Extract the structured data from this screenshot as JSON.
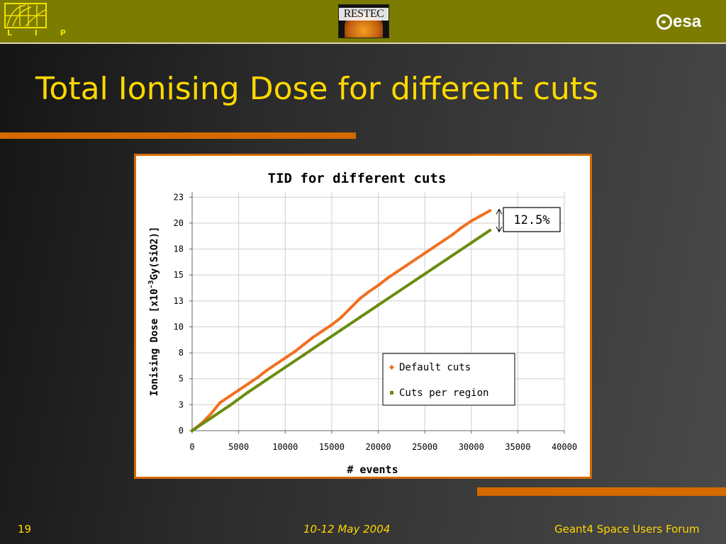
{
  "header": {
    "lip_letters": "L I P",
    "restec_text": "RESTEC",
    "esa_text": "esa"
  },
  "slide": {
    "title": "Total Ionising Dose for different cuts"
  },
  "footer": {
    "page": "19",
    "date": "10-12 May 2004",
    "event": "Geant4 Space Users Forum"
  },
  "colors": {
    "accent": "#d46a00",
    "title": "#ffd800",
    "topbar": "#7c7c00",
    "default_series": "#f07020",
    "region_series": "#6a8c10"
  },
  "chart_data": {
    "type": "line",
    "title": "TID for different cuts",
    "xlabel": "# events",
    "ylabel_prefix": "Ionising Dose [x10",
    "ylabel_exp": "-3",
    "ylabel_suffix": "Gy(SiO2)]",
    "xlim": [
      0,
      40000
    ],
    "ylim": [
      0,
      23
    ],
    "xticks": [
      0,
      5000,
      10000,
      15000,
      20000,
      25000,
      30000,
      35000,
      40000
    ],
    "yticks": [
      0,
      2.5,
      5,
      7.5,
      10,
      12.5,
      15,
      17.5,
      20,
      22.5
    ],
    "ytick_labels": [
      "0",
      "3",
      "5",
      "8",
      "10",
      "13",
      "15",
      "18",
      "20",
      "23"
    ],
    "grid": true,
    "legend": "lower-right",
    "annotation": "12.5%",
    "series": [
      {
        "name": "Default cuts",
        "color": "#f07020",
        "x": [
          0,
          1000,
          2000,
          3000,
          4000,
          5000,
          6000,
          7000,
          8000,
          9000,
          10000,
          11000,
          12000,
          13000,
          14000,
          15000,
          16000,
          17000,
          18000,
          19000,
          20000,
          21000,
          22000,
          23000,
          24000,
          25000,
          26000,
          27000,
          28000,
          29000,
          30000,
          31000,
          32000
        ],
        "y": [
          0,
          0.7,
          1.6,
          2.7,
          3.3,
          3.9,
          4.5,
          5.1,
          5.8,
          6.4,
          7.0,
          7.6,
          8.3,
          9.0,
          9.6,
          10.2,
          10.9,
          11.8,
          12.7,
          13.4,
          14.0,
          14.7,
          15.3,
          15.9,
          16.5,
          17.1,
          17.7,
          18.3,
          18.9,
          19.6,
          20.2,
          20.7,
          21.2
        ]
      },
      {
        "name": "Cuts per region",
        "color": "#6a8c10",
        "x": [
          0,
          2000,
          4000,
          6000,
          8000,
          10000,
          12000,
          14000,
          16000,
          18000,
          20000,
          22000,
          24000,
          26000,
          28000,
          30000,
          32000
        ],
        "y": [
          0,
          1.2,
          2.4,
          3.7,
          4.9,
          6.1,
          7.3,
          8.5,
          9.7,
          10.9,
          12.1,
          13.3,
          14.5,
          15.7,
          16.9,
          18.1,
          19.3
        ]
      }
    ]
  }
}
